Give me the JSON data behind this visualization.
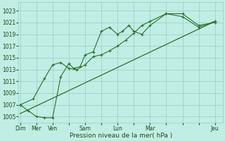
{
  "background_color": "#c0eee4",
  "grid_color": "#96ccc4",
  "line_color": "#2d6e2d",
  "marker_color": "#2d6e2d",
  "xlabel": "Pression niveau de la mer( hPa )",
  "ylim": [
    1004,
    1024.5
  ],
  "yticks": [
    1005,
    1007,
    1009,
    1011,
    1013,
    1015,
    1017,
    1019,
    1021,
    1023
  ],
  "xlim": [
    -0.1,
    12.5
  ],
  "xtick_labels": [
    "Dim",
    "Mer",
    "Ven",
    "",
    "Sam",
    "",
    "Lun",
    "",
    "Mar",
    "",
    "",
    "",
    "Jeu"
  ],
  "xtick_positions": [
    0,
    1,
    2,
    3,
    4,
    5,
    6,
    7,
    8,
    9,
    10,
    11,
    12
  ],
  "series1_x": [
    0,
    0.5,
    1,
    1.5,
    2,
    2.5,
    3,
    3.3,
    3.7,
    4,
    4.5,
    5,
    5.5,
    6,
    6.3,
    6.7,
    7,
    7.5,
    8,
    9,
    10,
    11,
    12
  ],
  "series1_y": [
    1007,
    1006,
    1005,
    1004.8,
    1004.8,
    1011.8,
    1014.0,
    1013.2,
    1013.5,
    1015.5,
    1016.0,
    1019.5,
    1020.2,
    1019.0,
    1019.5,
    1020.5,
    1019.5,
    1019.0,
    1020.5,
    1022.5,
    1022.5,
    1020.5,
    1021.0
  ],
  "series2_x": [
    0,
    0.8,
    1.5,
    2,
    2.5,
    3,
    3.5,
    4,
    4.5,
    5,
    5.5,
    6,
    6.5,
    7,
    7.5,
    8,
    9,
    10,
    11,
    12
  ],
  "series2_y": [
    1007,
    1008,
    1011.5,
    1013.8,
    1014.2,
    1013.2,
    1013.0,
    1013.8,
    1015.2,
    1015.5,
    1016.2,
    1017.0,
    1018.0,
    1019.2,
    1020.5,
    1021.2,
    1022.5,
    1022.0,
    1020.2,
    1021.2
  ],
  "series3_x": [
    0,
    12
  ],
  "series3_y": [
    1005.5,
    1021.2
  ]
}
